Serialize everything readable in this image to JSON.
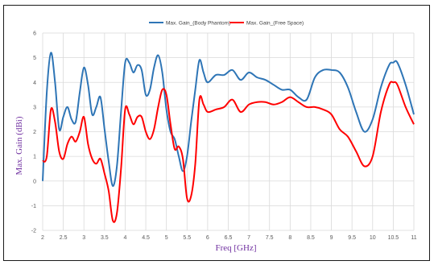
{
  "chart_data": {
    "type": "line",
    "xlabel": "Freq [GHz]",
    "ylabel": "Max. Gain (dBi)",
    "xlim": [
      2,
      11
    ],
    "ylim": [
      -2,
      6
    ],
    "x_ticks": [
      "2",
      "2.5",
      "3",
      "3.5",
      "4",
      "4.5",
      "5",
      "5.5",
      "6",
      "6.5",
      "7",
      "7.5",
      "8",
      "8.5",
      "9",
      "9.5",
      "10",
      "10.5",
      "11"
    ],
    "y_ticks": [
      "-2",
      "-1",
      "0",
      "1",
      "2",
      "3",
      "4",
      "5",
      "6"
    ],
    "grid": true,
    "legend_position": "top-right",
    "series": [
      {
        "name": "Max. Gain_(Body Phantom)",
        "color": "#2e75b6",
        "x": [
          2.0,
          2.1,
          2.2,
          2.3,
          2.4,
          2.5,
          2.6,
          2.7,
          2.8,
          2.9,
          3.0,
          3.1,
          3.2,
          3.3,
          3.4,
          3.5,
          3.6,
          3.7,
          3.8,
          3.9,
          4.0,
          4.1,
          4.2,
          4.3,
          4.4,
          4.5,
          4.6,
          4.7,
          4.8,
          4.9,
          5.0,
          5.1,
          5.2,
          5.3,
          5.4,
          5.5,
          5.6,
          5.7,
          5.8,
          5.9,
          6.0,
          6.2,
          6.4,
          6.6,
          6.8,
          7.0,
          7.2,
          7.4,
          7.6,
          7.8,
          8.0,
          8.2,
          8.4,
          8.6,
          8.8,
          9.0,
          9.2,
          9.4,
          9.6,
          9.8,
          10.0,
          10.2,
          10.4,
          10.5,
          10.6,
          10.8,
          11.0
        ],
        "y": [
          0.0,
          3.6,
          5.2,
          4.0,
          2.1,
          2.6,
          3.0,
          2.5,
          2.4,
          3.6,
          4.6,
          3.9,
          2.7,
          3.0,
          3.4,
          2.1,
          0.8,
          -0.2,
          0.6,
          2.8,
          4.8,
          4.8,
          4.4,
          4.7,
          4.5,
          3.5,
          3.7,
          4.6,
          5.1,
          4.4,
          2.9,
          2.0,
          1.7,
          1.0,
          0.4,
          1.0,
          2.4,
          3.7,
          4.9,
          4.4,
          4.0,
          4.3,
          4.3,
          4.5,
          4.1,
          4.4,
          4.2,
          4.1,
          3.9,
          3.7,
          3.7,
          3.4,
          3.3,
          4.2,
          4.5,
          4.5,
          4.4,
          3.8,
          2.8,
          2.0,
          2.5,
          3.8,
          4.7,
          4.8,
          4.8,
          3.9,
          2.7
        ]
      },
      {
        "name": "Max. Gain_(Free Space)",
        "color": "#ff0000",
        "x": [
          2.0,
          2.1,
          2.2,
          2.3,
          2.4,
          2.5,
          2.6,
          2.7,
          2.8,
          2.9,
          3.0,
          3.1,
          3.2,
          3.3,
          3.4,
          3.5,
          3.6,
          3.7,
          3.8,
          3.9,
          4.0,
          4.1,
          4.2,
          4.3,
          4.4,
          4.5,
          4.6,
          4.7,
          4.8,
          4.9,
          5.0,
          5.1,
          5.2,
          5.3,
          5.4,
          5.5,
          5.6,
          5.7,
          5.8,
          5.9,
          6.0,
          6.2,
          6.4,
          6.6,
          6.8,
          7.0,
          7.2,
          7.4,
          7.6,
          7.8,
          8.0,
          8.2,
          8.4,
          8.6,
          8.8,
          9.0,
          9.2,
          9.4,
          9.6,
          9.8,
          10.0,
          10.2,
          10.4,
          10.5,
          10.6,
          10.8,
          11.0
        ],
        "y": [
          0.8,
          1.0,
          2.9,
          2.4,
          1.2,
          0.9,
          1.5,
          1.8,
          1.6,
          2.0,
          2.6,
          1.5,
          0.9,
          0.7,
          0.9,
          0.3,
          -0.4,
          -1.6,
          -1.3,
          0.5,
          2.9,
          2.7,
          2.3,
          2.6,
          2.6,
          2.0,
          1.7,
          2.1,
          3.0,
          3.7,
          3.5,
          2.3,
          1.3,
          1.4,
          0.9,
          -0.7,
          -0.6,
          0.7,
          3.3,
          3.1,
          2.8,
          2.9,
          3.0,
          3.3,
          2.8,
          3.1,
          3.2,
          3.2,
          3.1,
          3.2,
          3.4,
          3.2,
          3.0,
          3.0,
          2.9,
          2.7,
          2.1,
          1.8,
          1.2,
          0.6,
          1.0,
          2.8,
          3.9,
          4.0,
          3.9,
          3.0,
          2.3
        ]
      }
    ]
  }
}
